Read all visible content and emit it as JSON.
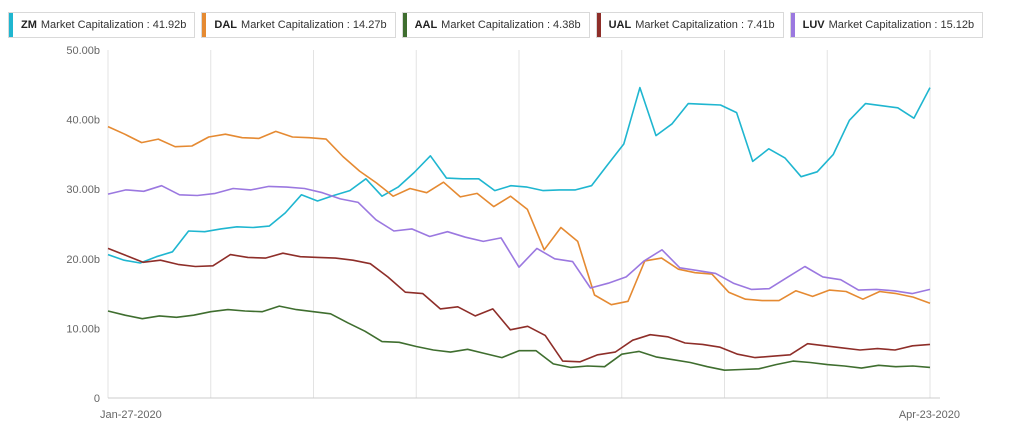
{
  "chart_data": {
    "type": "line",
    "title": "",
    "xlabel": "",
    "ylabel": "",
    "ylim": [
      0,
      50
    ],
    "y_ticks": [
      {
        "value": 0,
        "label": "0"
      },
      {
        "value": 10,
        "label": "10.00b"
      },
      {
        "value": 20,
        "label": "20.00b"
      },
      {
        "value": 30,
        "label": "30.00b"
      },
      {
        "value": 40,
        "label": "40.00b"
      },
      {
        "value": 50,
        "label": "50.00b"
      }
    ],
    "x_tick_labels": [
      "Jan-27-2020",
      "Apr-23-2020"
    ],
    "x_index_range": [
      0,
      63
    ],
    "grid": "vertical",
    "legend_position": "top-left",
    "series": [
      {
        "ticker": "ZM",
        "label_text": "Market Capitalization : 41.92b",
        "color": "#1fb6d0",
        "values": [
          20.6,
          19.8,
          19.4,
          20.3,
          21.0,
          24.0,
          23.9,
          24.3,
          24.6,
          24.5,
          24.7,
          26.6,
          29.2,
          28.3,
          29.1,
          29.8,
          31.5,
          29.0,
          30.3,
          32.4,
          34.8,
          31.6,
          31.5,
          31.5,
          29.8,
          30.5,
          30.3,
          29.8,
          29.9,
          29.9,
          30.5,
          33.5,
          36.5,
          44.6,
          37.7,
          39.4,
          42.3,
          42.2,
          42.1,
          41.0,
          34.0,
          35.8,
          34.5,
          31.8,
          32.5,
          35.0,
          39.9,
          42.3,
          42.0,
          41.7,
          40.2,
          44.6
        ]
      },
      {
        "ticker": "DAL",
        "label_text": "Market Capitalization : 14.27b",
        "color": "#e58a32",
        "values": [
          39.0,
          37.9,
          36.7,
          37.2,
          36.1,
          36.2,
          37.5,
          37.9,
          37.4,
          37.3,
          38.3,
          37.5,
          37.4,
          37.2,
          34.7,
          32.6,
          30.9,
          29.0,
          30.1,
          29.5,
          31.0,
          28.9,
          29.4,
          27.5,
          29.0,
          27.1,
          21.3,
          24.5,
          22.5,
          14.8,
          13.4,
          13.9,
          19.7,
          20.1,
          18.5,
          18.0,
          17.8,
          15.2,
          14.2,
          14.0,
          14.0,
          15.4,
          14.6,
          15.5,
          15.3,
          14.2,
          15.3,
          15.0,
          14.5,
          13.6
        ]
      },
      {
        "ticker": "AAL",
        "label_text": "Market Capitalization : 4.38b",
        "color": "#3f6e2f",
        "values": [
          12.5,
          11.9,
          11.4,
          11.8,
          11.6,
          11.9,
          12.4,
          12.7,
          12.5,
          12.4,
          13.2,
          12.7,
          12.4,
          12.1,
          10.8,
          9.6,
          8.1,
          8.0,
          7.4,
          6.9,
          6.6,
          7.0,
          6.4,
          5.8,
          6.8,
          6.8,
          4.9,
          4.4,
          4.6,
          4.5,
          6.3,
          6.7,
          5.9,
          5.5,
          5.1,
          4.5,
          4.0,
          4.1,
          4.2,
          4.8,
          5.3,
          5.1,
          4.8,
          4.6,
          4.3,
          4.7,
          4.5,
          4.6,
          4.4
        ]
      },
      {
        "ticker": "UAL",
        "label_text": "Market Capitalization : 7.41b",
        "color": "#8e2e29",
        "values": [
          21.5,
          20.5,
          19.5,
          19.8,
          19.2,
          18.9,
          19.0,
          20.6,
          20.2,
          20.1,
          20.8,
          20.3,
          20.2,
          20.1,
          19.8,
          19.3,
          17.4,
          15.2,
          15.0,
          12.8,
          13.1,
          11.8,
          12.8,
          9.8,
          10.3,
          9.0,
          5.3,
          5.2,
          6.2,
          6.6,
          8.3,
          9.1,
          8.8,
          7.9,
          7.7,
          7.3,
          6.3,
          5.8,
          6.0,
          6.2,
          7.8,
          7.5,
          7.2,
          6.9,
          7.1,
          6.9,
          7.5,
          7.7
        ]
      },
      {
        "ticker": "LUV",
        "label_text": "Market Capitalization : 15.12b",
        "color": "#9b78e0",
        "values": [
          29.3,
          29.9,
          29.7,
          30.5,
          29.2,
          29.1,
          29.4,
          30.1,
          29.9,
          30.4,
          30.3,
          30.1,
          29.5,
          28.6,
          28.1,
          25.6,
          24.0,
          24.3,
          23.2,
          23.9,
          23.1,
          22.5,
          23.0,
          18.8,
          21.5,
          20.0,
          19.6,
          15.8,
          16.5,
          17.4,
          19.7,
          21.3,
          18.7,
          18.3,
          17.9,
          16.5,
          15.6,
          15.7,
          17.3,
          18.9,
          17.4,
          17.0,
          15.5,
          15.6,
          15.4,
          15.0,
          15.6
        ]
      }
    ]
  }
}
